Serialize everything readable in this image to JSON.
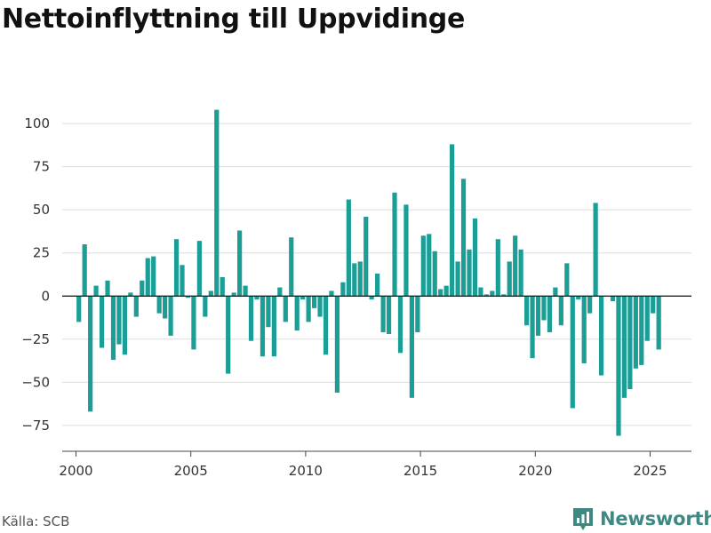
{
  "title": "Nettoinflyttning till Uppvidinge",
  "source": "Källa: SCB",
  "brand": {
    "name": "Newsworthy",
    "color": "#3e8a83",
    "icon": "bar-chart-pin-icon"
  },
  "chart_data": {
    "type": "bar",
    "title": "Nettoinflyttning till Uppvidinge",
    "xlabel": "",
    "ylabel": "",
    "bar_color": "#1a9e95",
    "ylim": [
      -90,
      115
    ],
    "xlim": [
      1999.4,
      2026.8
    ],
    "y_ticks": [
      100,
      75,
      50,
      25,
      0,
      -25,
      -50,
      -75
    ],
    "y_tick_labels": [
      "100",
      "75",
      "50",
      "25",
      "0",
      "−25",
      "−50",
      "−75"
    ],
    "x_ticks": [
      2000,
      2005,
      2010,
      2015,
      2020,
      2025
    ],
    "x_tick_labels": [
      "2000",
      "2005",
      "2010",
      "2015",
      "2020",
      "2025"
    ],
    "grid": true,
    "x": [
      2000.125,
      2000.375,
      2000.625,
      2000.875,
      2001.125,
      2001.375,
      2001.625,
      2001.875,
      2002.125,
      2002.375,
      2002.625,
      2002.875,
      2003.125,
      2003.375,
      2003.625,
      2003.875,
      2004.125,
      2004.375,
      2004.625,
      2004.875,
      2005.125,
      2005.375,
      2005.625,
      2005.875,
      2006.125,
      2006.375,
      2006.625,
      2006.875,
      2007.125,
      2007.375,
      2007.625,
      2007.875,
      2008.125,
      2008.375,
      2008.625,
      2008.875,
      2009.125,
      2009.375,
      2009.625,
      2009.875,
      2010.125,
      2010.375,
      2010.625,
      2010.875,
      2011.125,
      2011.375,
      2011.625,
      2011.875,
      2012.125,
      2012.375,
      2012.625,
      2012.875,
      2013.125,
      2013.375,
      2013.625,
      2013.875,
      2014.125,
      2014.375,
      2014.625,
      2014.875,
      2015.125,
      2015.375,
      2015.625,
      2015.875,
      2016.125,
      2016.375,
      2016.625,
      2016.875,
      2017.125,
      2017.375,
      2017.625,
      2017.875,
      2018.125,
      2018.375,
      2018.625,
      2018.875,
      2019.125,
      2019.375,
      2019.625,
      2019.875,
      2020.125,
      2020.375,
      2020.625,
      2020.875,
      2021.125,
      2021.375,
      2021.625,
      2021.875,
      2022.125,
      2022.375,
      2022.625,
      2022.875,
      2023.125,
      2023.375,
      2023.625,
      2023.875,
      2024.125,
      2024.375,
      2024.625,
      2024.875,
      2025.125,
      2025.375
    ],
    "values": [
      -15,
      30,
      -67,
      6,
      -30,
      9,
      -37,
      -28,
      -34,
      2,
      -12,
      9,
      22,
      23,
      -10,
      -13,
      -23,
      33,
      18,
      -1,
      -31,
      32,
      -12,
      3,
      108,
      11,
      -45,
      2,
      38,
      6,
      -26,
      -2,
      -35,
      -18,
      -35,
      5,
      -15,
      34,
      -20,
      -2,
      -15,
      -7,
      -12,
      -34,
      3,
      -56,
      8,
      56,
      19,
      20,
      46,
      -2,
      13,
      -21,
      -22,
      60,
      -33,
      53,
      -59,
      -21,
      35,
      36,
      26,
      4,
      6,
      88,
      20,
      68,
      27,
      45,
      5,
      1,
      3,
      33,
      1,
      20,
      35,
      27,
      -17,
      -36,
      -23,
      -14,
      -21,
      5,
      -17,
      19,
      -65,
      -2,
      -39,
      -10,
      54,
      -46,
      0,
      -3,
      -81,
      -59,
      -54,
      -42,
      -40,
      -26,
      -10,
      -31
    ]
  }
}
